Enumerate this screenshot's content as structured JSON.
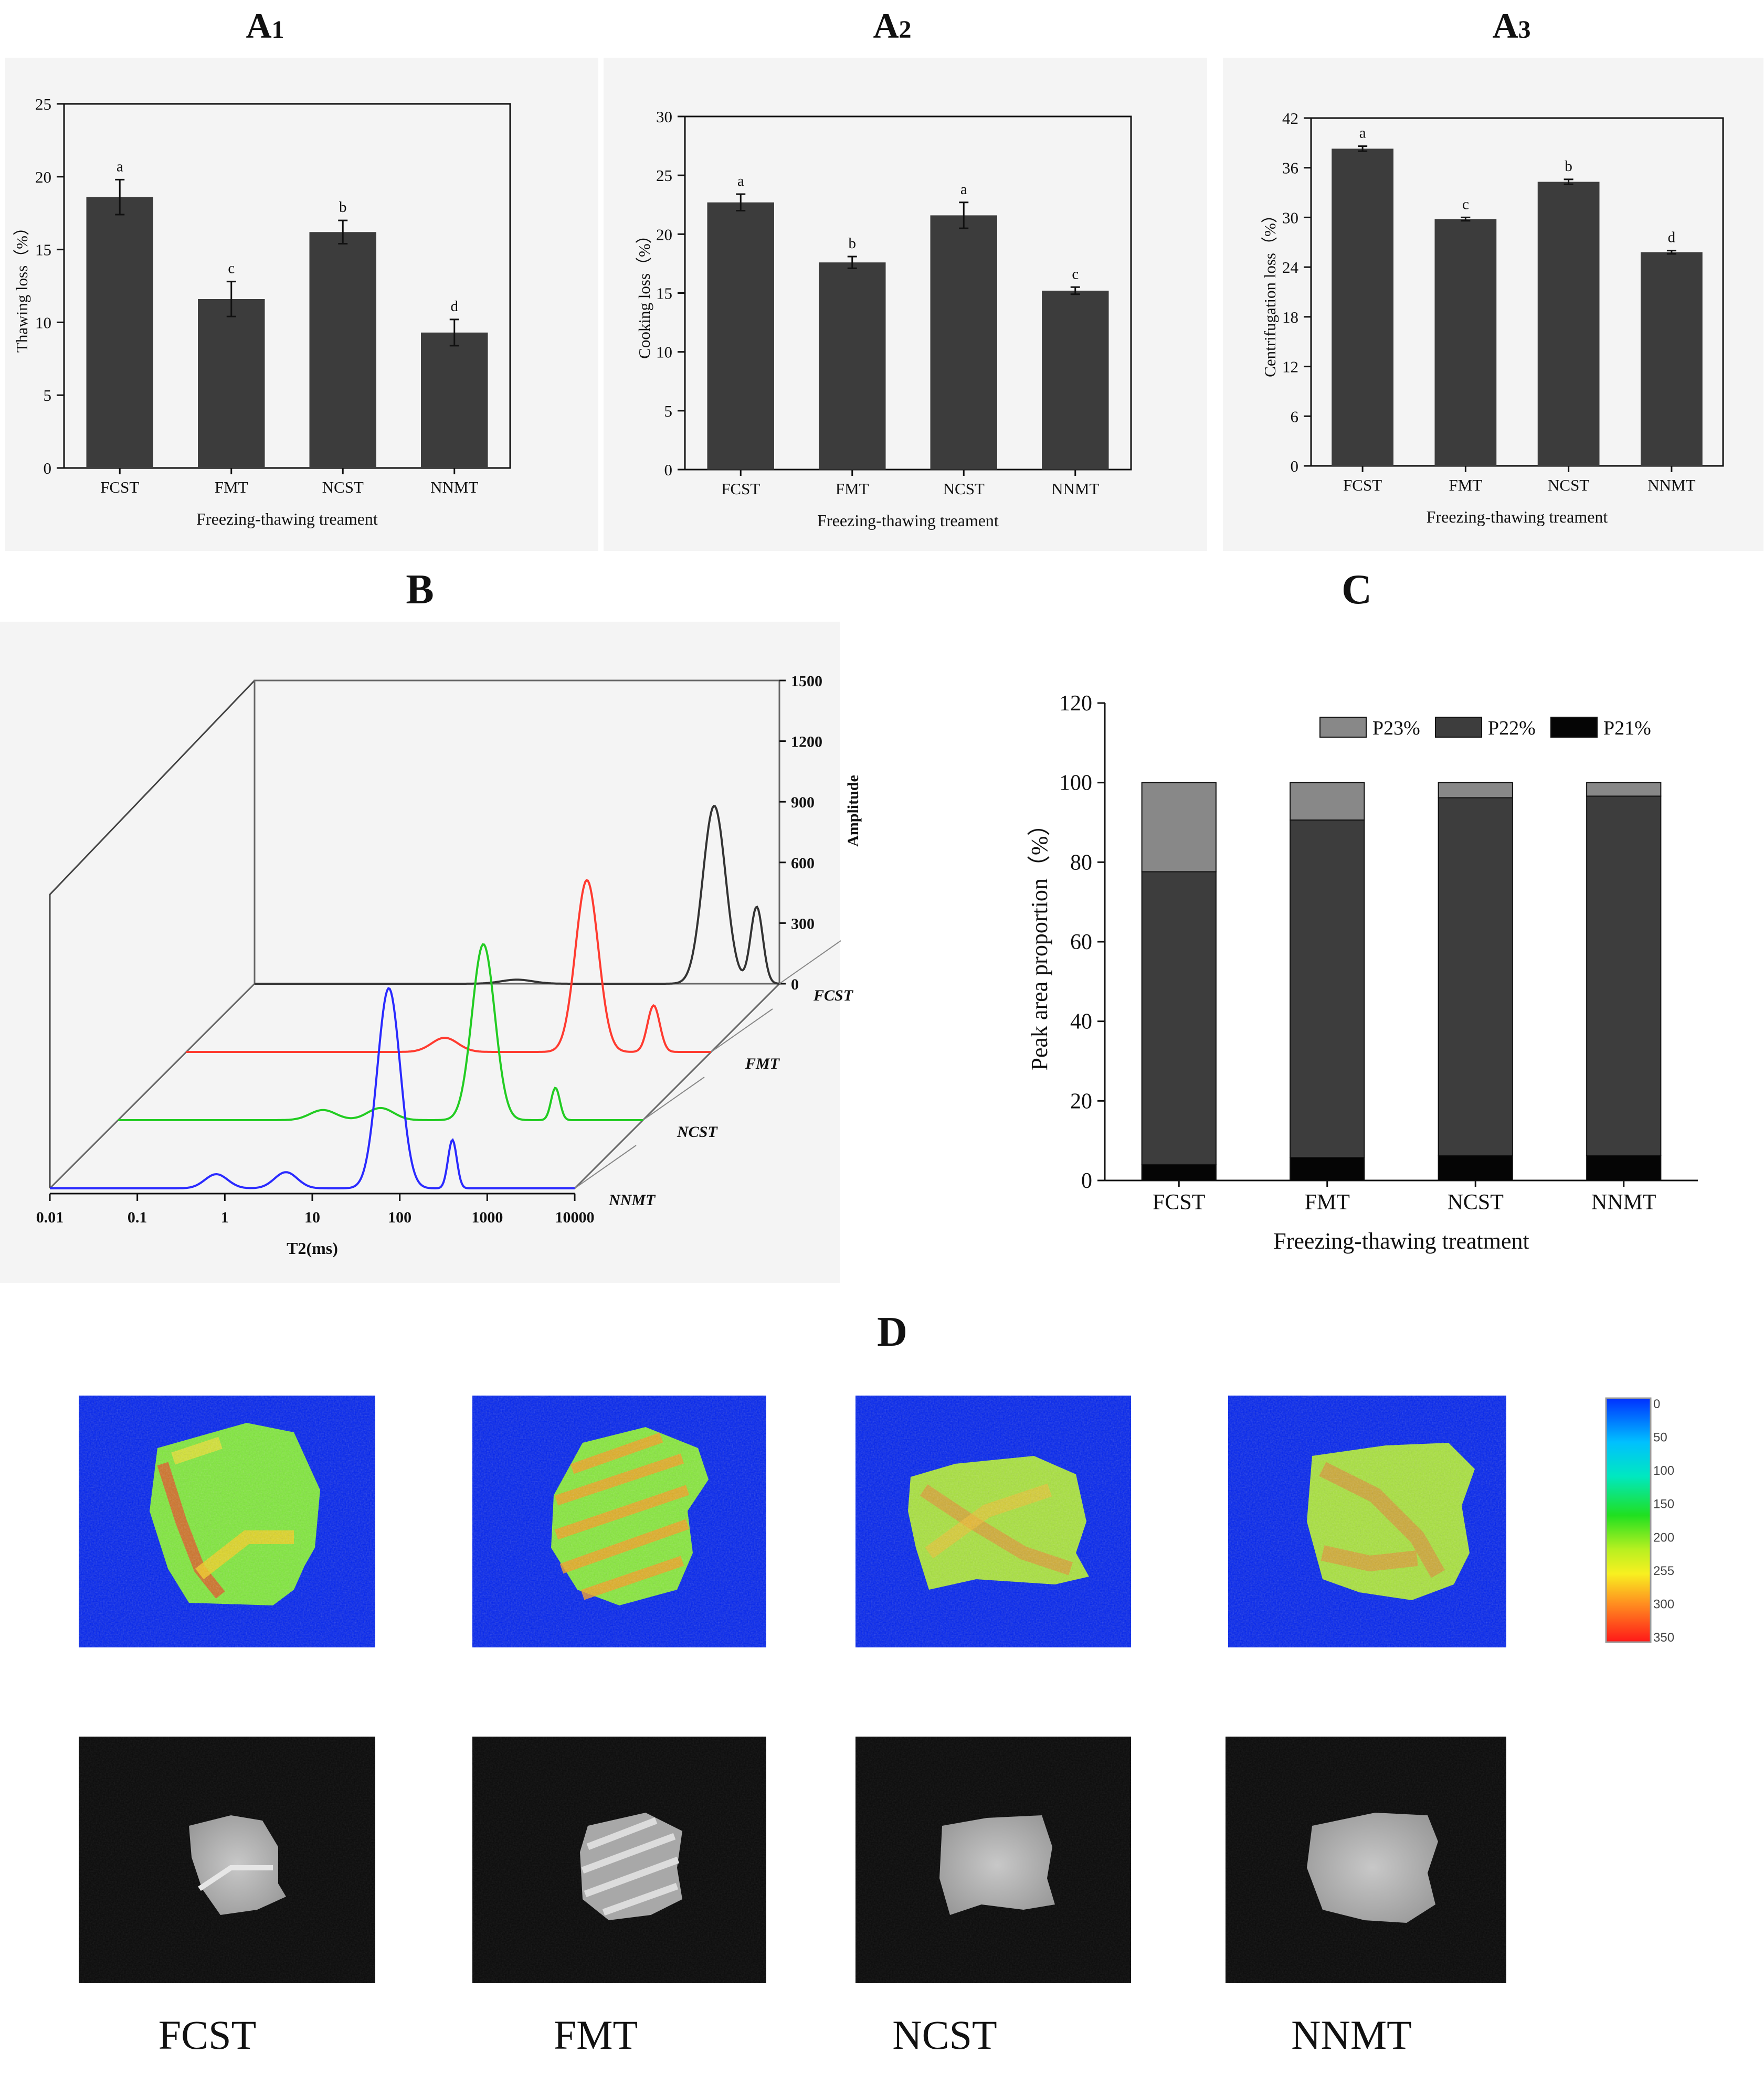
{
  "panels": {
    "A1": {
      "letter": "A",
      "sub": "1"
    },
    "A2": {
      "letter": "A",
      "sub": "2"
    },
    "A3": {
      "letter": "A",
      "sub": "3"
    },
    "B": {
      "letter": "B"
    },
    "C": {
      "letter": "C"
    },
    "D": {
      "letter": "D"
    }
  },
  "chart_data": [
    {
      "id": "A1",
      "type": "bar",
      "categories": [
        "FCST",
        "FMT",
        "NCST",
        "NNMT"
      ],
      "values": [
        18.6,
        11.6,
        16.2,
        9.3
      ],
      "errors": [
        1.2,
        1.2,
        0.8,
        0.9
      ],
      "significance": [
        "a",
        "c",
        "b",
        "d"
      ],
      "xlabel": "Freezing-thawing treament",
      "ylabel": "Thawing loss（%）",
      "ylim": [
        0,
        25
      ],
      "yticks": [
        0,
        5,
        10,
        15,
        20,
        25
      ],
      "bar_color": "#3c3c3c"
    },
    {
      "id": "A2",
      "type": "bar",
      "categories": [
        "FCST",
        "FMT",
        "NCST",
        "NNMT"
      ],
      "values": [
        22.7,
        17.6,
        21.6,
        15.2
      ],
      "errors": [
        0.7,
        0.5,
        1.1,
        0.3
      ],
      "significance": [
        "a",
        "b",
        "a",
        "c"
      ],
      "xlabel": "Freezing-thawing treament",
      "ylabel": "Cooking loss（%）",
      "ylim": [
        0,
        30
      ],
      "yticks": [
        0,
        5,
        10,
        15,
        20,
        25,
        30
      ],
      "bar_color": "#3c3c3c"
    },
    {
      "id": "A3",
      "type": "bar",
      "categories": [
        "FCST",
        "FMT",
        "NCST",
        "NNMT"
      ],
      "values": [
        38.3,
        29.8,
        34.3,
        25.8
      ],
      "errors": [
        0.3,
        0.2,
        0.3,
        0.2
      ],
      "significance": [
        "a",
        "c",
        "b",
        "d"
      ],
      "xlabel": "Freezing-thawing treament",
      "ylabel": "Centrifugation loss（%）",
      "ylim": [
        0,
        42
      ],
      "yticks": [
        0,
        6,
        12,
        18,
        24,
        30,
        36,
        42
      ],
      "bar_color": "#3c3c3c"
    },
    {
      "id": "B",
      "type": "line",
      "xscale": "log",
      "xlabel": "T2(ms)",
      "zlabel": "Amplitude",
      "xticks": [
        "0.01",
        "0.1",
        "1",
        "10",
        "100",
        "1000",
        "10000"
      ],
      "zticks": [
        0,
        300,
        600,
        900,
        1200,
        1500
      ],
      "zlim": [
        0,
        1500
      ],
      "series": [
        {
          "name": "FCST",
          "color": "#333333",
          "peaks": [
            {
              "t2": 10,
              "amp": 20,
              "w": 0.18
            },
            {
              "t2": 1800,
              "amp": 880,
              "w": 0.13
            },
            {
              "t2": 5500,
              "amp": 380,
              "w": 0.07
            }
          ]
        },
        {
          "name": "FMT",
          "color": "#ff3b30",
          "peaks": [
            {
              "t2": 9,
              "amp": 70,
              "w": 0.15
            },
            {
              "t2": 380,
              "amp": 850,
              "w": 0.13
            },
            {
              "t2": 2200,
              "amp": 230,
              "w": 0.07
            }
          ]
        },
        {
          "name": "NCST",
          "color": "#22cc22",
          "peaks": [
            {
              "t2": 2.2,
              "amp": 50,
              "w": 0.15
            },
            {
              "t2": 10,
              "amp": 60,
              "w": 0.15
            },
            {
              "t2": 150,
              "amp": 870,
              "w": 0.13
            },
            {
              "t2": 1000,
              "amp": 160,
              "w": 0.05
            }
          ]
        },
        {
          "name": "NNMT",
          "color": "#2a2aff",
          "peaks": [
            {
              "t2": 0.8,
              "amp": 70,
              "w": 0.13
            },
            {
              "t2": 5,
              "amp": 80,
              "w": 0.13
            },
            {
              "t2": 75,
              "amp": 990,
              "w": 0.13
            },
            {
              "t2": 400,
              "amp": 240,
              "w": 0.05
            }
          ]
        }
      ]
    },
    {
      "id": "C",
      "type": "bar",
      "stacked": true,
      "categories": [
        "FCST",
        "FMT",
        "NCST",
        "NNMT"
      ],
      "series": [
        {
          "name": "P21%",
          "color": "#050505",
          "values": [
            4.0,
            5.8,
            6.2,
            6.3
          ]
        },
        {
          "name": "P22%",
          "color": "#3d3d3d",
          "values": [
            73.6,
            84.8,
            90.0,
            90.3
          ]
        },
        {
          "name": "P23%",
          "color": "#888888",
          "values": [
            22.4,
            9.4,
            3.8,
            3.4
          ]
        }
      ],
      "legend_order": [
        "P23%",
        "P22%",
        "P21%"
      ],
      "xlabel": "Freezing-thawing treatment",
      "ylabel": "Peak area proportion（%）",
      "ylim": [
        0,
        120
      ],
      "yticks": [
        0,
        20,
        40,
        60,
        80,
        100,
        120
      ]
    }
  ],
  "panel_D": {
    "samples": [
      "FCST",
      "FMT",
      "NCST",
      "NNMT"
    ],
    "colorbar_ticks": [
      "0",
      "50",
      "100",
      "150",
      "200",
      "255",
      "300",
      "350"
    ],
    "pseudo_background": "#0022ee",
    "gray_background": "#0b0b0b"
  }
}
